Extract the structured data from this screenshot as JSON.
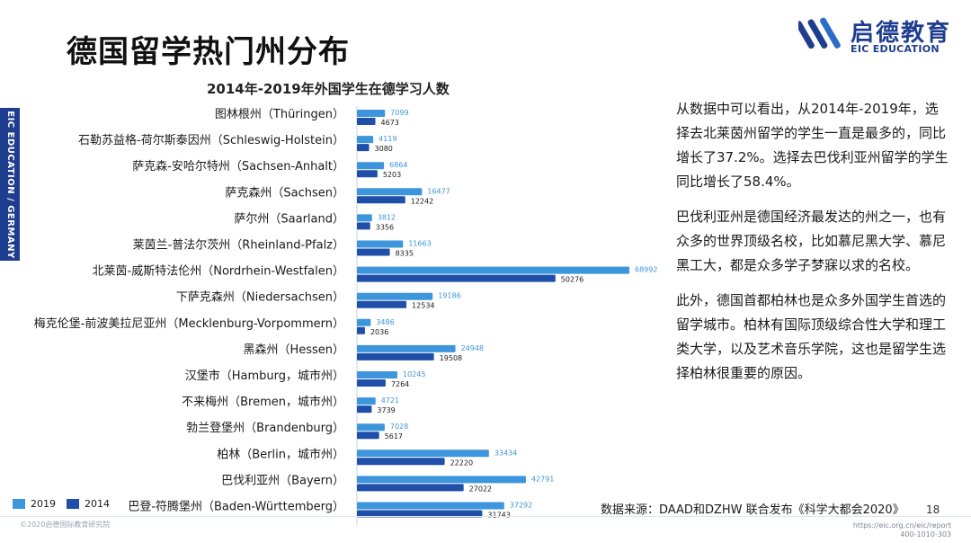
{
  "side_label": "EIC EDUCATION / GERMANY",
  "page_title": "德国留学热门州分布",
  "logo": {
    "cn": "启德教育",
    "en": "EIC EDUCATION"
  },
  "colors": {
    "series_2019": "#3d95dc",
    "series_2014": "#1f4fa8",
    "brand": "#1f3d8f"
  },
  "chart_data": {
    "type": "bar",
    "orientation": "horizontal",
    "title": "2014年-2019年外国学生在德学习人数",
    "categories": [
      "图林根州（Thüringen）",
      "石勒苏益格-荷尔斯泰因州（Schleswig-Holstein）",
      "萨克森-安哈尔特州（Sachsen-Anhalt）",
      "萨克森州（Sachsen）",
      "萨尔州（Saarland）",
      "莱茵兰-普法尔茨州（Rheinland-Pfalz）",
      "北莱茵-威斯特法伦州（Nordrhein-Westfalen）",
      "下萨克森州（Niedersachsen）",
      "梅克伦堡-前波美拉尼亚州（Mecklenburg-Vorpommern）",
      "黑森州（Hessen）",
      "汉堡市（Hamburg，城市州）",
      "不来梅州（Bremen，城市州）",
      "勃兰登堡州（Brandenburg）",
      "柏林（Berlin，城市州）",
      "巴伐利亚州（Bayern）",
      "巴登-符腾堡州（Baden-Württemberg）"
    ],
    "series": [
      {
        "name": "2019",
        "values": [
          7099,
          4119,
          6864,
          16477,
          3812,
          11663,
          68992,
          19186,
          3486,
          24948,
          10245,
          4721,
          7028,
          33434,
          42791,
          37292
        ]
      },
      {
        "name": "2014",
        "values": [
          4673,
          3080,
          5203,
          12242,
          3356,
          8335,
          50276,
          12534,
          2036,
          19508,
          7264,
          3739,
          5617,
          22220,
          27022,
          31743
        ]
      }
    ],
    "legend": "bottom-left"
  },
  "legend_labels": {
    "s2019": "2019",
    "s2014": "2014"
  },
  "paragraphs": [
    "从数据中可以看出，从2014年-2019年，选择去北莱茵州留学的学生一直是最多的，同比增长了37.2%。选择去巴伐利亚州留学的学生同比增长了58.4%。",
    "巴伐利亚州是德国经济最发达的州之一，也有众多的世界顶级名校，比如慕尼黑大学、慕尼黑工大，都是众多学子梦寐以求的名校。",
    "此外，德国首都柏林也是众多外国学生首选的留学城市。柏林有国际顶级综合性大学和理工类大学，以及艺术音乐学院，这也是留学生选择柏林很重要的原因。"
  ],
  "source": "数据来源：DAAD和DZHW 联合发布《科学大都会2020》",
  "page_number": "18",
  "copyright": "©2020启德国际教育研究院",
  "footer_url": [
    "https://eic.org.cn/eic/report",
    "400-1010-303"
  ]
}
